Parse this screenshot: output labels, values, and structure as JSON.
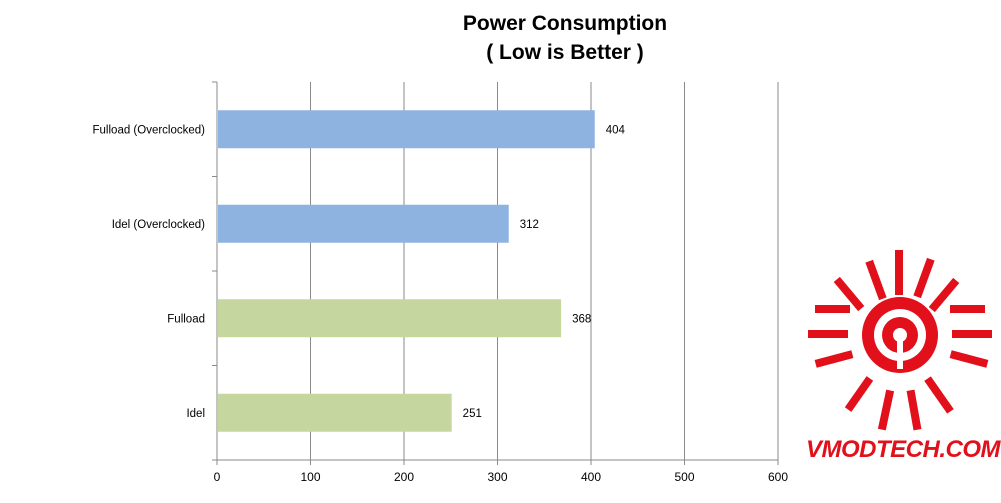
{
  "chart_data": {
    "type": "bar",
    "orientation": "horizontal",
    "title": "Power Consumption",
    "subtitle": "( Low is Better )",
    "categories": [
      "Fulload (Overclocked)",
      "Idel (Overclocked)",
      "Fulload",
      "Idel"
    ],
    "values": [
      404,
      312,
      368,
      251
    ],
    "data_labels": [
      "404",
      "312",
      "368",
      "251"
    ],
    "bar_colors": [
      "#8eb3e1",
      "#8eb3e1",
      "#c5d79f",
      "#c5d79f"
    ],
    "xlim": [
      0,
      600
    ],
    "xticks": [
      0,
      100,
      200,
      300,
      400,
      500,
      600
    ],
    "xtick_labels": [
      "0",
      "100",
      "200",
      "300",
      "400",
      "500",
      "600"
    ],
    "grid": true,
    "legend": "none"
  },
  "colors": {
    "gridline": "#8a8a8a",
    "axis": "#8a8a8a",
    "watermark": "#e1101a"
  },
  "watermark": {
    "text": "VMODTECH.COM",
    "icon": "vmodtech-logo-icon"
  }
}
